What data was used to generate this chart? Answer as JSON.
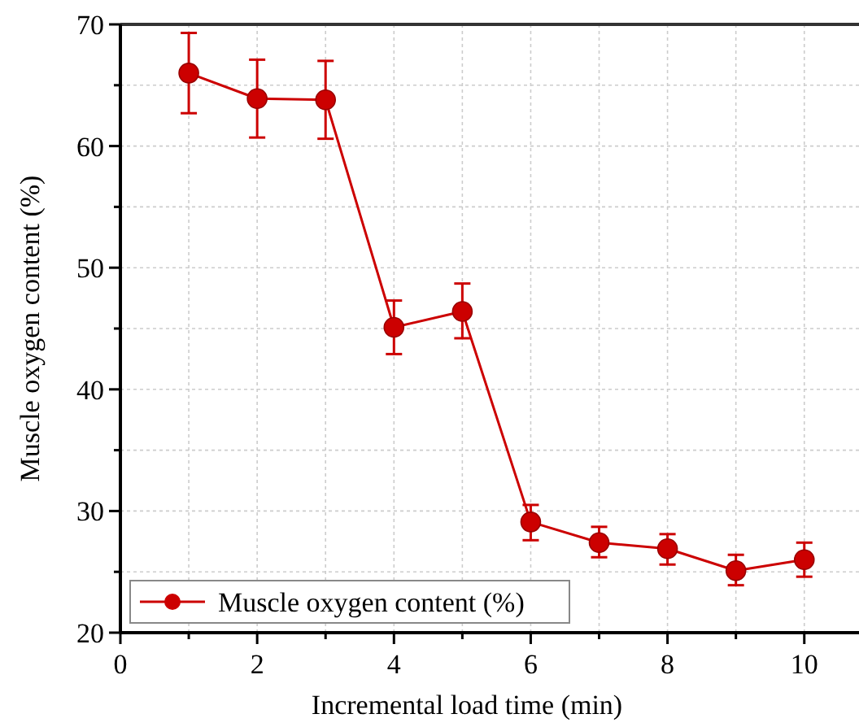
{
  "chart_data": {
    "type": "line",
    "xlabel": "Incremental load time (min)",
    "ylabel": "Muscle oxygen content (%)",
    "x": [
      1,
      2,
      3,
      4,
      5,
      6,
      7,
      8,
      9,
      10
    ],
    "series": [
      {
        "name": "Muscle oxygen content (%)",
        "color": "#cc0000",
        "values": [
          66.0,
          63.9,
          63.8,
          45.1,
          46.4,
          29.1,
          27.4,
          26.9,
          25.1,
          26.0
        ],
        "errors": [
          [
            62.7,
            69.3
          ],
          [
            60.7,
            67.1
          ],
          [
            60.6,
            67.0
          ],
          [
            42.9,
            47.3
          ],
          [
            44.2,
            48.7
          ],
          [
            27.6,
            30.5
          ],
          [
            26.2,
            28.7
          ],
          [
            25.6,
            28.1
          ],
          [
            23.9,
            26.4
          ],
          [
            24.6,
            27.4
          ]
        ]
      }
    ],
    "xlim": [
      0,
      10.8
    ],
    "ylim": [
      20,
      70
    ],
    "xticks": [
      0,
      {
        "value": 1,
        "label": null
      },
      2,
      {
        "value": 3,
        "label": null
      },
      4,
      {
        "value": 5,
        "label": null
      },
      6,
      {
        "value": 7,
        "label": null
      },
      8,
      {
        "value": 9,
        "label": null
      },
      10
    ],
    "yticks": [
      20,
      {
        "value": 25,
        "label": null
      },
      30,
      {
        "value": 35,
        "label": null
      },
      40,
      {
        "value": 45,
        "label": null
      },
      50,
      {
        "value": 55,
        "label": null
      },
      60,
      {
        "value": 65,
        "label": null
      },
      70
    ],
    "grid": true,
    "legend": "bottom left",
    "marker": "circle",
    "line_style": "solid"
  }
}
